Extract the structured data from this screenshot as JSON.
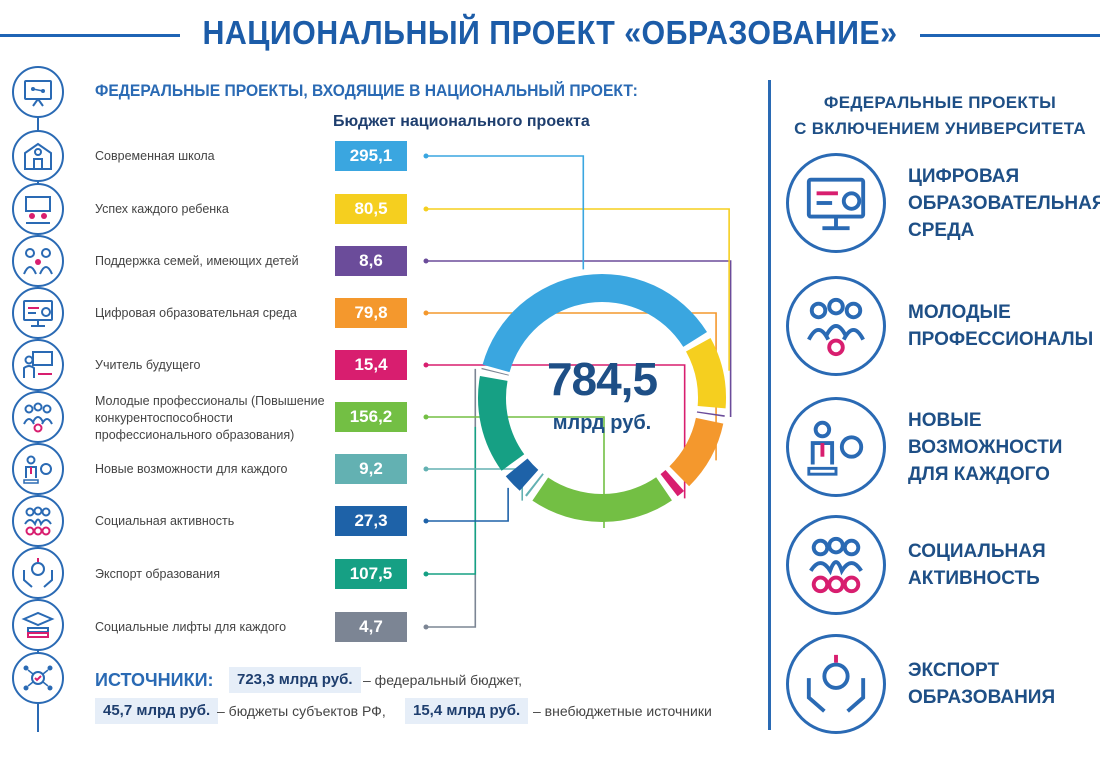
{
  "header": {
    "title": "НАЦИОНАЛЬНЫЙ ПРОЕКТ «ОБРАЗОВАНИЕ»",
    "subtitle": "ФЕДЕРАЛЬНЫЕ ПРОЕКТЫ, ВХОДЯЩИЕ В НАЦИОНАЛЬНЫЙ ПРОЕКТ:",
    "budget_title": "Бюджет национального проекта"
  },
  "chart_data": {
    "type": "pie",
    "title": "Бюджет национального проекта",
    "total": "784,5",
    "total_unit": "млрд руб.",
    "categories": [
      "Современная школа",
      "Успех каждого ребенка",
      "Поддержка семей, имеющих детей",
      "Цифровая образовательная среда",
      "Учитель будущего",
      "Молодые профессионалы (Повышение конкурентоспособности профессионального образования)",
      "Новые возможности для каждого",
      "Социальная активность",
      "Экспорт образования",
      "Социальные лифты для каждого"
    ],
    "values": [
      295.1,
      80.5,
      8.6,
      79.8,
      15.4,
      156.2,
      9.2,
      27.3,
      107.5,
      4.7
    ],
    "value_labels": [
      "295,1",
      "80,5",
      "8,6",
      "79,8",
      "15,4",
      "156,2",
      "9,2",
      "27,3",
      "107,5",
      "4,7"
    ],
    "colors": [
      "#3aa6e0",
      "#f5cf1f",
      "#6b4c9a",
      "#f4982d",
      "#d81e6f",
      "#73bf44",
      "#63b1b2",
      "#1e62a8",
      "#16a084",
      "#7c8594"
    ]
  },
  "sources": {
    "label": "ИСТОЧНИКИ:",
    "items": [
      {
        "amount": "723,3 млрд руб.",
        "text": "– федеральный бюджет,"
      },
      {
        "amount": "45,7 млрд руб.",
        "text": "– бюджеты субъектов РФ,"
      },
      {
        "amount": "15,4 млрд руб.",
        "text": "– внебюджетные источники"
      }
    ]
  },
  "right_panel": {
    "title_line1": "ФЕДЕРАЛЬНЫЕ ПРОЕКТЫ",
    "title_line2": "С ВКЛЮЧЕНИЕМ УНИВЕРСИТЕТА",
    "items": [
      {
        "lines": [
          "ЦИФРОВАЯ",
          "ОБРАЗОВАТЕЛЬНАЯ",
          "СРЕДА"
        ],
        "icon": "computer-icon"
      },
      {
        "lines": [
          "МОЛОДЫЕ",
          "ПРОФЕССИОНАЛЫ"
        ],
        "icon": "team-icon"
      },
      {
        "lines": [
          "НОВЫЕ",
          "ВОЗМОЖНОСТИ",
          "ДЛЯ КАЖДОГО"
        ],
        "icon": "person-medal-icon"
      },
      {
        "lines": [
          "СОЦИАЛЬНАЯ",
          "АКТИВНОСТЬ"
        ],
        "icon": "group-stars-icon"
      },
      {
        "lines": [
          "ЭКСПОРТ",
          "ОБРАЗОВАНИЯ"
        ],
        "icon": "hands-brain-icon"
      }
    ]
  },
  "left_icons": [
    "presentation-icon",
    "school-icon",
    "child-icon",
    "family-icon",
    "computer-icon",
    "teacher-icon",
    "team-icon",
    "person-medal-icon",
    "group-stars-icon",
    "hands-brain-icon",
    "graduation-books-icon",
    "network-icon"
  ]
}
